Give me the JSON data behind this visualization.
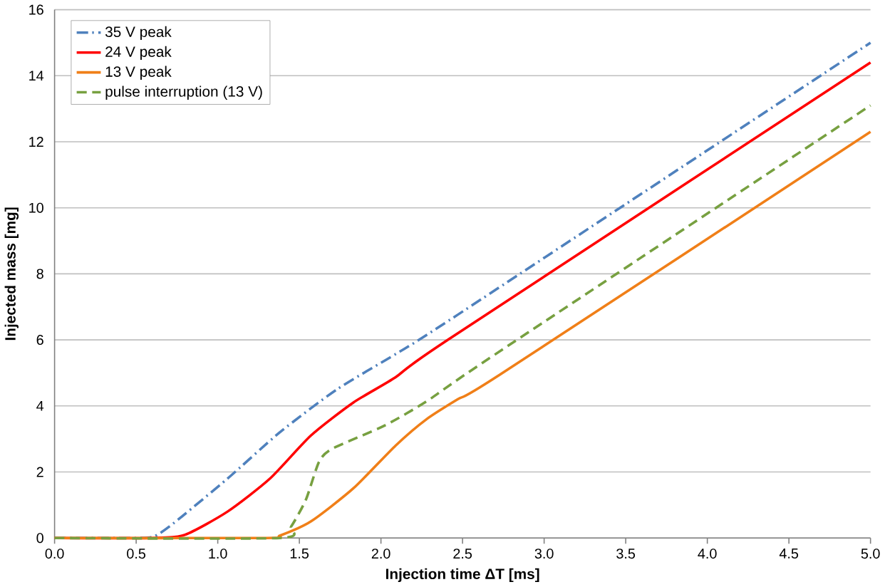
{
  "chart_data": {
    "type": "line",
    "xlabel": "Injection time ΔT [ms]",
    "ylabel": "Injected mass [mg]",
    "xlim": [
      0,
      5
    ],
    "xticks": [
      {
        "value": 0,
        "label": "0.0"
      },
      {
        "value": 0.5,
        "label": "0.5"
      },
      {
        "value": 1,
        "label": "1.0"
      },
      {
        "value": 1.5,
        "label": "1.5"
      },
      {
        "value": 2,
        "label": "2.0"
      },
      {
        "value": 2.5,
        "label": "2.5"
      },
      {
        "value": 3,
        "label": "3.0"
      },
      {
        "value": 3.5,
        "label": "3.5"
      },
      {
        "value": 4,
        "label": "4.0"
      },
      {
        "value": 4.5,
        "label": "4.5"
      },
      {
        "value": 5,
        "label": "5.0"
      }
    ],
    "ylim": [
      0,
      16
    ],
    "yticks": [
      0,
      2,
      4,
      6,
      8,
      10,
      12,
      14,
      16
    ],
    "grid": "y",
    "legend": "top left",
    "marker": "none",
    "series": [
      {
        "name": "35 V peak",
        "color": "#4f81bd",
        "line_style": "dashdot",
        "x": [
          0,
          0.5,
          0.61,
          0.73,
          1.06,
          1.38,
          1.73,
          2.1,
          2.47,
          5
        ],
        "values": [
          0,
          0,
          0.05,
          0.45,
          1.8,
          3.2,
          4.5,
          5.6,
          6.76,
          15.0
        ]
      },
      {
        "name": "24 V peak",
        "color": "#ff0000",
        "line_style": "solid",
        "x": [
          0,
          0.6,
          0.8,
          1.06,
          1.32,
          1.57,
          1.83,
          2.09,
          2.41,
          5
        ],
        "values": [
          0,
          0,
          0.1,
          0.8,
          1.8,
          3.1,
          4.1,
          4.87,
          6.0,
          14.4
        ]
      },
      {
        "name": "13 V peak",
        "color": "#f07f18",
        "line_style": "solid",
        "x": [
          0,
          1.3,
          1.38,
          1.57,
          1.83,
          2.09,
          2.28,
          2.47,
          2.73,
          5
        ],
        "values": [
          0,
          0,
          0.07,
          0.5,
          1.5,
          2.8,
          3.6,
          4.2,
          4.95,
          12.3
        ]
      },
      {
        "name": "pulse interruption (13 V)",
        "color": "#77a040",
        "line_style": "dashed",
        "x": [
          0,
          1.38,
          1.45,
          1.54,
          1.62,
          1.7,
          2.02,
          2.28,
          2.66,
          5
        ],
        "values": [
          0,
          0,
          0.35,
          1.16,
          2.3,
          2.7,
          3.4,
          4.14,
          5.43,
          13.1
        ]
      }
    ]
  }
}
